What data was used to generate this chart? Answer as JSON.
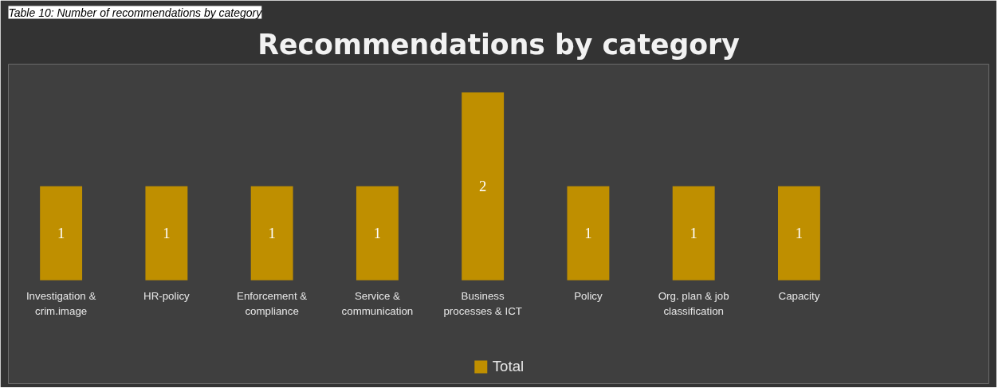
{
  "chart_data": {
    "type": "bar",
    "title": "Recommendations by category",
    "annotations": [
      "Table 10: Number of recommendations by category"
    ],
    "categories": [
      "Investigation & crim.image",
      "HR-policy",
      "Enforcement & compliance",
      "Service & communication",
      "Business processes & ICT",
      "Policy",
      "Org. plan & job classification",
      "Capacity"
    ],
    "series": [
      {
        "name": "Total",
        "color": "#bf8f00",
        "values": [
          1,
          1,
          1,
          1,
          2,
          1,
          1,
          1
        ]
      }
    ],
    "data_labels": true,
    "legend": "bottom",
    "grid": false
  }
}
